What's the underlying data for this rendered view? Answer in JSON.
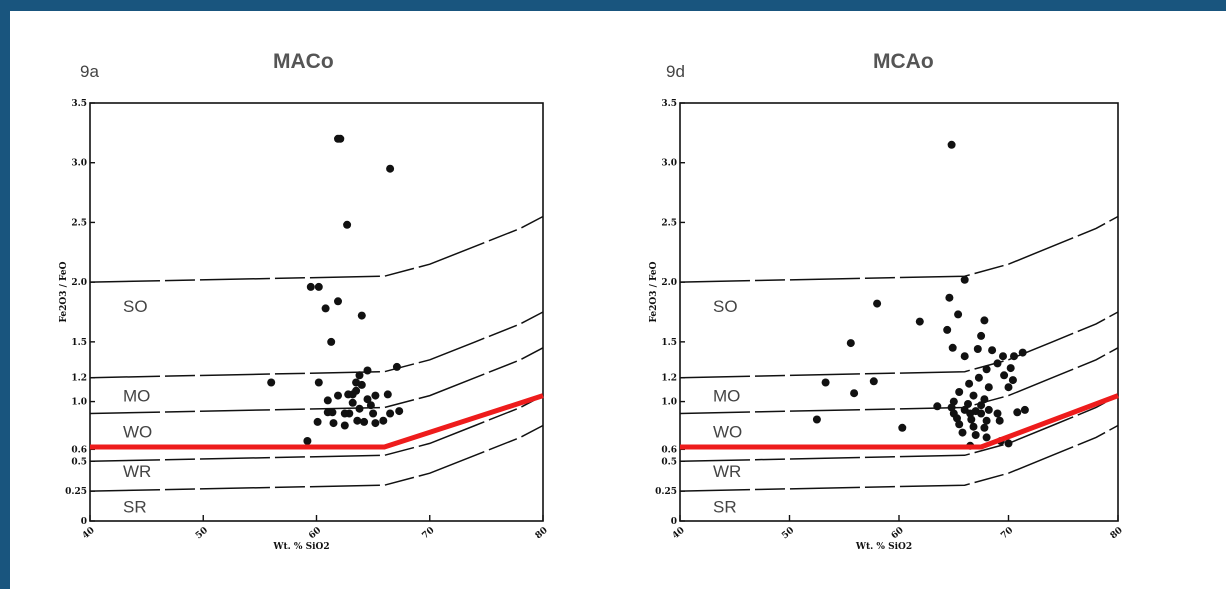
{
  "colors": {
    "frame": "#19557e",
    "background": "#ffffff",
    "ink": "#111111",
    "highlight": "#ee1c1c"
  },
  "chart_data": [
    {
      "type": "scatter",
      "panel_id": "9a",
      "title": "MACo",
      "xlabel": "Wt. % SiO2",
      "ylabel": "Fe2O3 / FeO",
      "xlim": [
        40,
        80
      ],
      "ylim": [
        0,
        3.5
      ],
      "x_ticks": [
        "40",
        "50",
        "60",
        "70",
        "80"
      ],
      "y_ticks": [
        {
          "value": 3.5,
          "label": "3.5"
        },
        {
          "value": 3.0,
          "label": "3.0"
        },
        {
          "value": 2.5,
          "label": "2.5"
        },
        {
          "value": 2.0,
          "label": "2.0"
        },
        {
          "value": 1.5,
          "label": "1.5"
        },
        {
          "value": 1.2,
          "label": "1.2"
        },
        {
          "value": 1.0,
          "label": "1.0"
        },
        {
          "value": 0.6,
          "label": "0.6"
        },
        {
          "value": 0.5,
          "label": "0.5"
        },
        {
          "value": 0.25,
          "label": "0.25"
        },
        {
          "value": 0,
          "label": "0"
        }
      ],
      "regions": [
        "SO",
        "MO",
        "WO",
        "WR",
        "SR"
      ],
      "boundaries": [
        {
          "points": [
            [
              40,
              2.0
            ],
            [
              66,
              2.05
            ],
            [
              70,
              2.15
            ],
            [
              74,
              2.3
            ],
            [
              78,
              2.45
            ],
            [
              80,
              2.55
            ]
          ]
        },
        {
          "points": [
            [
              40,
              1.2
            ],
            [
              66,
              1.25
            ],
            [
              70,
              1.35
            ],
            [
              74,
              1.5
            ],
            [
              78,
              1.65
            ],
            [
              80,
              1.75
            ]
          ]
        },
        {
          "points": [
            [
              40,
              0.9
            ],
            [
              66,
              0.95
            ],
            [
              70,
              1.05
            ],
            [
              74,
              1.2
            ],
            [
              78,
              1.35
            ],
            [
              80,
              1.45
            ]
          ]
        },
        {
          "points": [
            [
              40,
              0.5
            ],
            [
              66,
              0.55
            ],
            [
              70,
              0.65
            ],
            [
              74,
              0.8
            ],
            [
              78,
              0.95
            ],
            [
              80,
              1.05
            ]
          ]
        },
        {
          "points": [
            [
              40,
              0.25
            ],
            [
              66,
              0.3
            ],
            [
              70,
              0.4
            ],
            [
              74,
              0.55
            ],
            [
              78,
              0.7
            ],
            [
              80,
              0.8
            ]
          ]
        }
      ],
      "highlight_line": [
        [
          40,
          0.62
        ],
        [
          66,
          0.62
        ],
        [
          80,
          1.05
        ]
      ],
      "points": [
        [
          62.1,
          3.2
        ],
        [
          61.9,
          3.2
        ],
        [
          66.5,
          2.95
        ],
        [
          62.7,
          2.48
        ],
        [
          59.5,
          1.96
        ],
        [
          60.2,
          1.96
        ],
        [
          61.9,
          1.84
        ],
        [
          60.8,
          1.78
        ],
        [
          64.0,
          1.72
        ],
        [
          61.3,
          1.5
        ],
        [
          67.1,
          1.29
        ],
        [
          64.5,
          1.26
        ],
        [
          56.0,
          1.16
        ],
        [
          60.2,
          1.16
        ],
        [
          63.8,
          1.22
        ],
        [
          63.5,
          1.16
        ],
        [
          64.0,
          1.14
        ],
        [
          63.5,
          1.09
        ],
        [
          62.8,
          1.06
        ],
        [
          63.2,
          1.06
        ],
        [
          61.9,
          1.05
        ],
        [
          65.2,
          1.05
        ],
        [
          66.3,
          1.06
        ],
        [
          64.5,
          1.02
        ],
        [
          61.0,
          1.01
        ],
        [
          63.2,
          0.99
        ],
        [
          64.8,
          0.97
        ],
        [
          63.8,
          0.94
        ],
        [
          61.0,
          0.91
        ],
        [
          61.4,
          0.91
        ],
        [
          62.9,
          0.9
        ],
        [
          62.5,
          0.9
        ],
        [
          65.0,
          0.9
        ],
        [
          66.5,
          0.9
        ],
        [
          67.3,
          0.92
        ],
        [
          63.6,
          0.84
        ],
        [
          65.9,
          0.84
        ],
        [
          60.1,
          0.83
        ],
        [
          61.5,
          0.82
        ],
        [
          62.5,
          0.8
        ],
        [
          64.2,
          0.83
        ],
        [
          65.2,
          0.82
        ],
        [
          59.2,
          0.67
        ]
      ]
    },
    {
      "type": "scatter",
      "panel_id": "9d",
      "title": "MCAo",
      "xlabel": "Wt. % SiO2",
      "ylabel": "Fe2O3 / FeO",
      "xlim": [
        40,
        80
      ],
      "ylim": [
        0,
        3.5
      ],
      "x_ticks": [
        "40",
        "50",
        "60",
        "70",
        "80"
      ],
      "y_ticks": [
        {
          "value": 3.5,
          "label": "3.5"
        },
        {
          "value": 3.0,
          "label": "3.0"
        },
        {
          "value": 2.5,
          "label": "2.5"
        },
        {
          "value": 2.0,
          "label": "2.0"
        },
        {
          "value": 1.5,
          "label": "1.5"
        },
        {
          "value": 1.2,
          "label": "1.2"
        },
        {
          "value": 1.0,
          "label": "1.0"
        },
        {
          "value": 0.6,
          "label": "0.6"
        },
        {
          "value": 0.5,
          "label": "0.5"
        },
        {
          "value": 0.25,
          "label": "0.25"
        },
        {
          "value": 0,
          "label": "0"
        }
      ],
      "regions": [
        "SO",
        "MO",
        "WO",
        "WR",
        "SR"
      ],
      "boundaries": [
        {
          "points": [
            [
              40,
              2.0
            ],
            [
              66,
              2.05
            ],
            [
              70,
              2.15
            ],
            [
              74,
              2.3
            ],
            [
              78,
              2.45
            ],
            [
              80,
              2.55
            ]
          ]
        },
        {
          "points": [
            [
              40,
              1.2
            ],
            [
              66,
              1.25
            ],
            [
              70,
              1.35
            ],
            [
              74,
              1.5
            ],
            [
              78,
              1.65
            ],
            [
              80,
              1.75
            ]
          ]
        },
        {
          "points": [
            [
              40,
              0.9
            ],
            [
              66,
              0.95
            ],
            [
              70,
              1.05
            ],
            [
              74,
              1.2
            ],
            [
              78,
              1.35
            ],
            [
              80,
              1.45
            ]
          ]
        },
        {
          "points": [
            [
              40,
              0.5
            ],
            [
              66,
              0.55
            ],
            [
              70,
              0.65
            ],
            [
              74,
              0.8
            ],
            [
              78,
              0.95
            ],
            [
              80,
              1.05
            ]
          ]
        },
        {
          "points": [
            [
              40,
              0.25
            ],
            [
              66,
              0.3
            ],
            [
              70,
              0.4
            ],
            [
              74,
              0.55
            ],
            [
              78,
              0.7
            ],
            [
              80,
              0.8
            ]
          ]
        }
      ],
      "highlight_line": [
        [
          40,
          0.62
        ],
        [
          67.5,
          0.62
        ],
        [
          80,
          1.05
        ]
      ],
      "points": [
        [
          64.8,
          3.15
        ],
        [
          66.0,
          2.02
        ],
        [
          64.6,
          1.87
        ],
        [
          58.0,
          1.82
        ],
        [
          65.4,
          1.73
        ],
        [
          61.9,
          1.67
        ],
        [
          64.4,
          1.6
        ],
        [
          67.8,
          1.68
        ],
        [
          55.6,
          1.49
        ],
        [
          64.9,
          1.45
        ],
        [
          67.5,
          1.55
        ],
        [
          67.2,
          1.44
        ],
        [
          68.5,
          1.43
        ],
        [
          69.5,
          1.38
        ],
        [
          70.5,
          1.38
        ],
        [
          71.3,
          1.41
        ],
        [
          66.0,
          1.38
        ],
        [
          69.0,
          1.32
        ],
        [
          70.2,
          1.28
        ],
        [
          68.0,
          1.27
        ],
        [
          53.3,
          1.16
        ],
        [
          57.7,
          1.17
        ],
        [
          67.3,
          1.2
        ],
        [
          69.6,
          1.22
        ],
        [
          70.4,
          1.18
        ],
        [
          66.4,
          1.15
        ],
        [
          68.2,
          1.12
        ],
        [
          70.0,
          1.12
        ],
        [
          55.9,
          1.07
        ],
        [
          65.5,
          1.08
        ],
        [
          66.8,
          1.05
        ],
        [
          67.8,
          1.02
        ],
        [
          65.0,
          1.0
        ],
        [
          66.3,
          0.98
        ],
        [
          67.5,
          0.97
        ],
        [
          63.5,
          0.96
        ],
        [
          64.8,
          0.95
        ],
        [
          66.0,
          0.93
        ],
        [
          67.0,
          0.92
        ],
        [
          68.2,
          0.93
        ],
        [
          65.0,
          0.9
        ],
        [
          66.5,
          0.9
        ],
        [
          67.5,
          0.9
        ],
        [
          69.0,
          0.9
        ],
        [
          70.8,
          0.91
        ],
        [
          71.5,
          0.93
        ],
        [
          65.3,
          0.86
        ],
        [
          66.6,
          0.85
        ],
        [
          68.0,
          0.84
        ],
        [
          69.2,
          0.84
        ],
        [
          52.5,
          0.85
        ],
        [
          65.5,
          0.81
        ],
        [
          66.8,
          0.79
        ],
        [
          67.8,
          0.78
        ],
        [
          60.3,
          0.78
        ],
        [
          65.8,
          0.74
        ],
        [
          67.0,
          0.72
        ],
        [
          68.0,
          0.7
        ],
        [
          69.3,
          0.67
        ],
        [
          70.0,
          0.65
        ],
        [
          66.5,
          0.63
        ]
      ]
    }
  ]
}
